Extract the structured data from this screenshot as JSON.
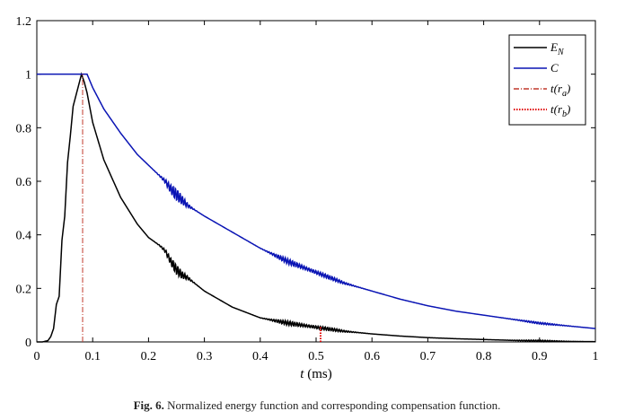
{
  "chart_data": {
    "type": "line",
    "title": "",
    "xlabel_var": "t",
    "xlabel_unit": " (ms)",
    "ylabel": "",
    "xlim": [
      0,
      1
    ],
    "ylim": [
      0,
      1.2
    ],
    "x_ticks": [
      0,
      0.1,
      0.2,
      0.3,
      0.4,
      0.5,
      0.6,
      0.7,
      0.8,
      0.9,
      1
    ],
    "x_tick_labels": [
      "0",
      "0.1",
      "0.2",
      "0.3",
      "0.4",
      "0.5",
      "0.6",
      "0.7",
      "0.8",
      "0.9",
      "1"
    ],
    "y_ticks": [
      0,
      0.2,
      0.4,
      0.6,
      0.8,
      1,
      1.2
    ],
    "y_tick_labels": [
      "0",
      "0.2",
      "0.4",
      "0.6",
      "0.8",
      "1",
      "1.2"
    ],
    "grid": false,
    "legend_position": "top-right",
    "series": [
      {
        "name": "E_N",
        "color": "#000000",
        "style": "solid",
        "x": [
          0,
          0.01,
          0.02,
          0.025,
          0.03,
          0.035,
          0.04,
          0.045,
          0.05,
          0.055,
          0.06,
          0.065,
          0.07,
          0.075,
          0.08,
          0.085,
          0.09,
          0.1,
          0.12,
          0.15,
          0.18,
          0.2,
          0.22,
          0.23,
          0.24,
          0.25,
          0.26,
          0.27,
          0.3,
          0.35,
          0.4,
          0.45,
          0.5,
          0.55,
          0.6,
          0.65,
          0.7,
          0.75,
          0.8,
          0.85,
          0.9,
          0.95,
          1.0
        ],
        "values": [
          0,
          0,
          0.005,
          0.02,
          0.05,
          0.14,
          0.17,
          0.38,
          0.47,
          0.67,
          0.77,
          0.88,
          0.92,
          0.96,
          1.0,
          0.97,
          0.93,
          0.82,
          0.68,
          0.54,
          0.44,
          0.39,
          0.36,
          0.34,
          0.3,
          0.27,
          0.25,
          0.24,
          0.19,
          0.13,
          0.09,
          0.07,
          0.055,
          0.04,
          0.03,
          0.022,
          0.016,
          0.012,
          0.009,
          0.006,
          0.004,
          0.002,
          0.001
        ]
      },
      {
        "name": "C",
        "color": "#0a14b4",
        "style": "solid",
        "x": [
          0,
          0.05,
          0.09,
          0.1,
          0.12,
          0.15,
          0.18,
          0.2,
          0.22,
          0.23,
          0.24,
          0.25,
          0.26,
          0.27,
          0.3,
          0.35,
          0.4,
          0.45,
          0.5,
          0.55,
          0.6,
          0.65,
          0.7,
          0.75,
          0.8,
          0.85,
          0.9,
          0.95,
          1.0
        ],
        "values": [
          1,
          1,
          1,
          0.95,
          0.87,
          0.78,
          0.7,
          0.66,
          0.62,
          0.6,
          0.57,
          0.55,
          0.53,
          0.51,
          0.47,
          0.41,
          0.35,
          0.3,
          0.26,
          0.22,
          0.19,
          0.16,
          0.135,
          0.115,
          0.1,
          0.085,
          0.07,
          0.06,
          0.05
        ]
      }
    ],
    "markers": [
      {
        "name": "t(r_a)",
        "x": 0.082,
        "color": "#c0392b",
        "style": "dashdot"
      },
      {
        "name": "t(r_b)",
        "x": 0.508,
        "color": "#e00000",
        "style": "dotted",
        "y_top": 0.06
      }
    ],
    "legend": [
      {
        "label_main": "E",
        "label_sub": "N",
        "label_close": "",
        "color": "#000000",
        "style": "solid"
      },
      {
        "label_main": "C",
        "label_sub": "",
        "label_close": "",
        "color": "#0a14b4",
        "style": "solid"
      },
      {
        "label_main": "t(r",
        "label_sub": "a",
        "label_close": ")",
        "color": "#c0392b",
        "style": "dashdot"
      },
      {
        "label_main": "t(r",
        "label_sub": "b",
        "label_close": ")",
        "color": "#e00000",
        "style": "dotted"
      }
    ]
  },
  "caption": {
    "prefix": "Fig. 6.",
    "text": " Normalized energy function and corresponding compensation function."
  }
}
